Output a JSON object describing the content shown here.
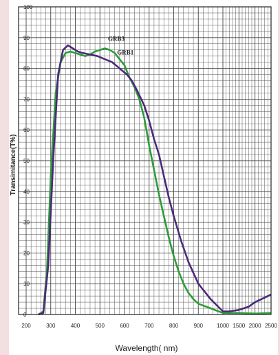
{
  "chart_data": {
    "type": "line",
    "xlabel": "Wavelength( nm)",
    "ylabel": "Transimitance(T%)",
    "x_tick_labels": [
      "200",
      "300",
      "400",
      "500",
      "600",
      "700",
      "800",
      "900",
      "1000",
      "1500",
      "2000",
      "2500"
    ],
    "y_tick_labels": [
      "0",
      "10",
      "20",
      "30",
      "40",
      "50",
      "60",
      "70",
      "80",
      "90",
      "100"
    ],
    "ylim": [
      0,
      100
    ],
    "grid": true,
    "series": [
      {
        "name": "GRB3",
        "color": "#2e9b3a",
        "points": [
          [
            250,
            0
          ],
          [
            270,
            1
          ],
          [
            285,
            15
          ],
          [
            300,
            45
          ],
          [
            320,
            72
          ],
          [
            340,
            82
          ],
          [
            360,
            85
          ],
          [
            380,
            85.5
          ],
          [
            400,
            85
          ],
          [
            420,
            84.5
          ],
          [
            440,
            84
          ],
          [
            460,
            84.5
          ],
          [
            480,
            85.5
          ],
          [
            500,
            86
          ],
          [
            520,
            86.5
          ],
          [
            540,
            86
          ],
          [
            560,
            85
          ],
          [
            580,
            83
          ],
          [
            600,
            81
          ],
          [
            620,
            77
          ],
          [
            640,
            74
          ],
          [
            660,
            70
          ],
          [
            680,
            64
          ],
          [
            700,
            55
          ],
          [
            720,
            47
          ],
          [
            740,
            39
          ],
          [
            760,
            32
          ],
          [
            780,
            25
          ],
          [
            800,
            19
          ],
          [
            820,
            14
          ],
          [
            840,
            10
          ],
          [
            860,
            7
          ],
          [
            880,
            5
          ],
          [
            900,
            3.5
          ],
          [
            950,
            2
          ],
          [
            1000,
            0.5
          ],
          [
            1500,
            0.5
          ],
          [
            2000,
            0.3
          ],
          [
            2500,
            0.5
          ]
        ]
      },
      {
        "name": "GRB1",
        "color": "#4b2a7a",
        "points": [
          [
            250,
            0
          ],
          [
            270,
            0.5
          ],
          [
            290,
            16
          ],
          [
            310,
            50
          ],
          [
            330,
            78
          ],
          [
            350,
            86
          ],
          [
            370,
            87.5
          ],
          [
            390,
            86.5
          ],
          [
            410,
            85.5
          ],
          [
            430,
            85
          ],
          [
            460,
            84.5
          ],
          [
            490,
            84
          ],
          [
            520,
            83
          ],
          [
            550,
            82
          ],
          [
            580,
            80
          ],
          [
            610,
            78
          ],
          [
            630,
            76
          ],
          [
            650,
            73
          ],
          [
            680,
            68
          ],
          [
            700,
            63
          ],
          [
            720,
            57
          ],
          [
            740,
            52
          ],
          [
            760,
            45
          ],
          [
            780,
            38
          ],
          [
            800,
            32
          ],
          [
            830,
            24
          ],
          [
            860,
            17
          ],
          [
            900,
            10
          ],
          [
            950,
            5
          ],
          [
            1000,
            1
          ],
          [
            1200,
            1
          ],
          [
            1500,
            1.5
          ],
          [
            1800,
            2.5
          ],
          [
            2000,
            4
          ],
          [
            2300,
            5.5
          ],
          [
            2500,
            6.5
          ]
        ]
      }
    ]
  }
}
